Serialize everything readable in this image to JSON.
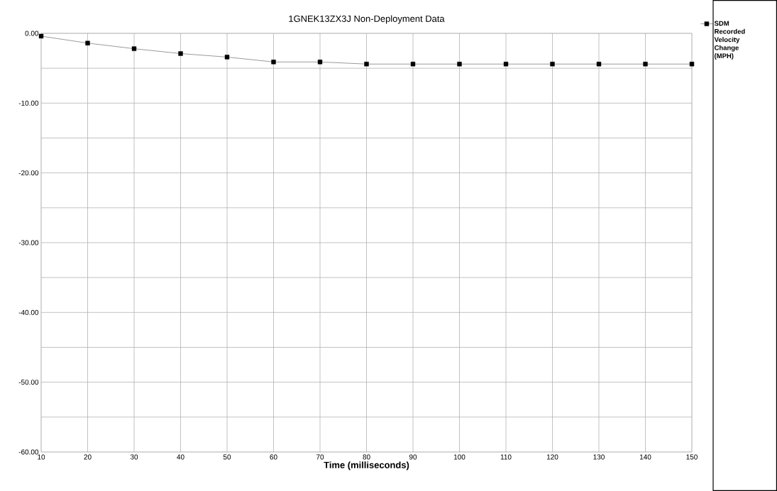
{
  "chart_data": {
    "type": "line",
    "title": "1GNEK13ZX3J    Non-Deployment Data",
    "xlabel": "Time (milliseconds)",
    "x": [
      10,
      20,
      30,
      40,
      50,
      60,
      70,
      80,
      90,
      100,
      110,
      120,
      130,
      140,
      150
    ],
    "series": [
      {
        "name": "SDM Recorded Velocity Change (MPH)",
        "color": "#000000",
        "values": [
          -0.4,
          -1.4,
          -2.2,
          -2.9,
          -3.4,
          -4.1,
          -4.1,
          -4.4,
          -4.4,
          -4.4,
          -4.4,
          -4.4,
          -4.4,
          -4.4,
          -4.4
        ]
      }
    ],
    "xlim": [
      10,
      150
    ],
    "xticks": [
      10,
      20,
      30,
      40,
      50,
      60,
      70,
      80,
      90,
      100,
      110,
      120,
      130,
      140,
      150
    ],
    "ylim": [
      -60,
      0
    ],
    "yticks": [
      {
        "value": 0,
        "label": "0.00"
      },
      {
        "value": -5,
        "label": null
      },
      {
        "value": -10,
        "label": "-10.00"
      },
      {
        "value": -15,
        "label": null
      },
      {
        "value": -20,
        "label": "-20.00"
      },
      {
        "value": -25,
        "label": null
      },
      {
        "value": -30,
        "label": "-30.00"
      },
      {
        "value": -35,
        "label": null
      },
      {
        "value": -40,
        "label": "-40.00"
      },
      {
        "value": -45,
        "label": null
      },
      {
        "value": -50,
        "label": "-50.00"
      },
      {
        "value": -55,
        "label": null
      },
      {
        "value": -60,
        "label": "-60.00"
      }
    ],
    "grid": true,
    "legend": "top right",
    "marker": "square",
    "line_style": "solid"
  }
}
